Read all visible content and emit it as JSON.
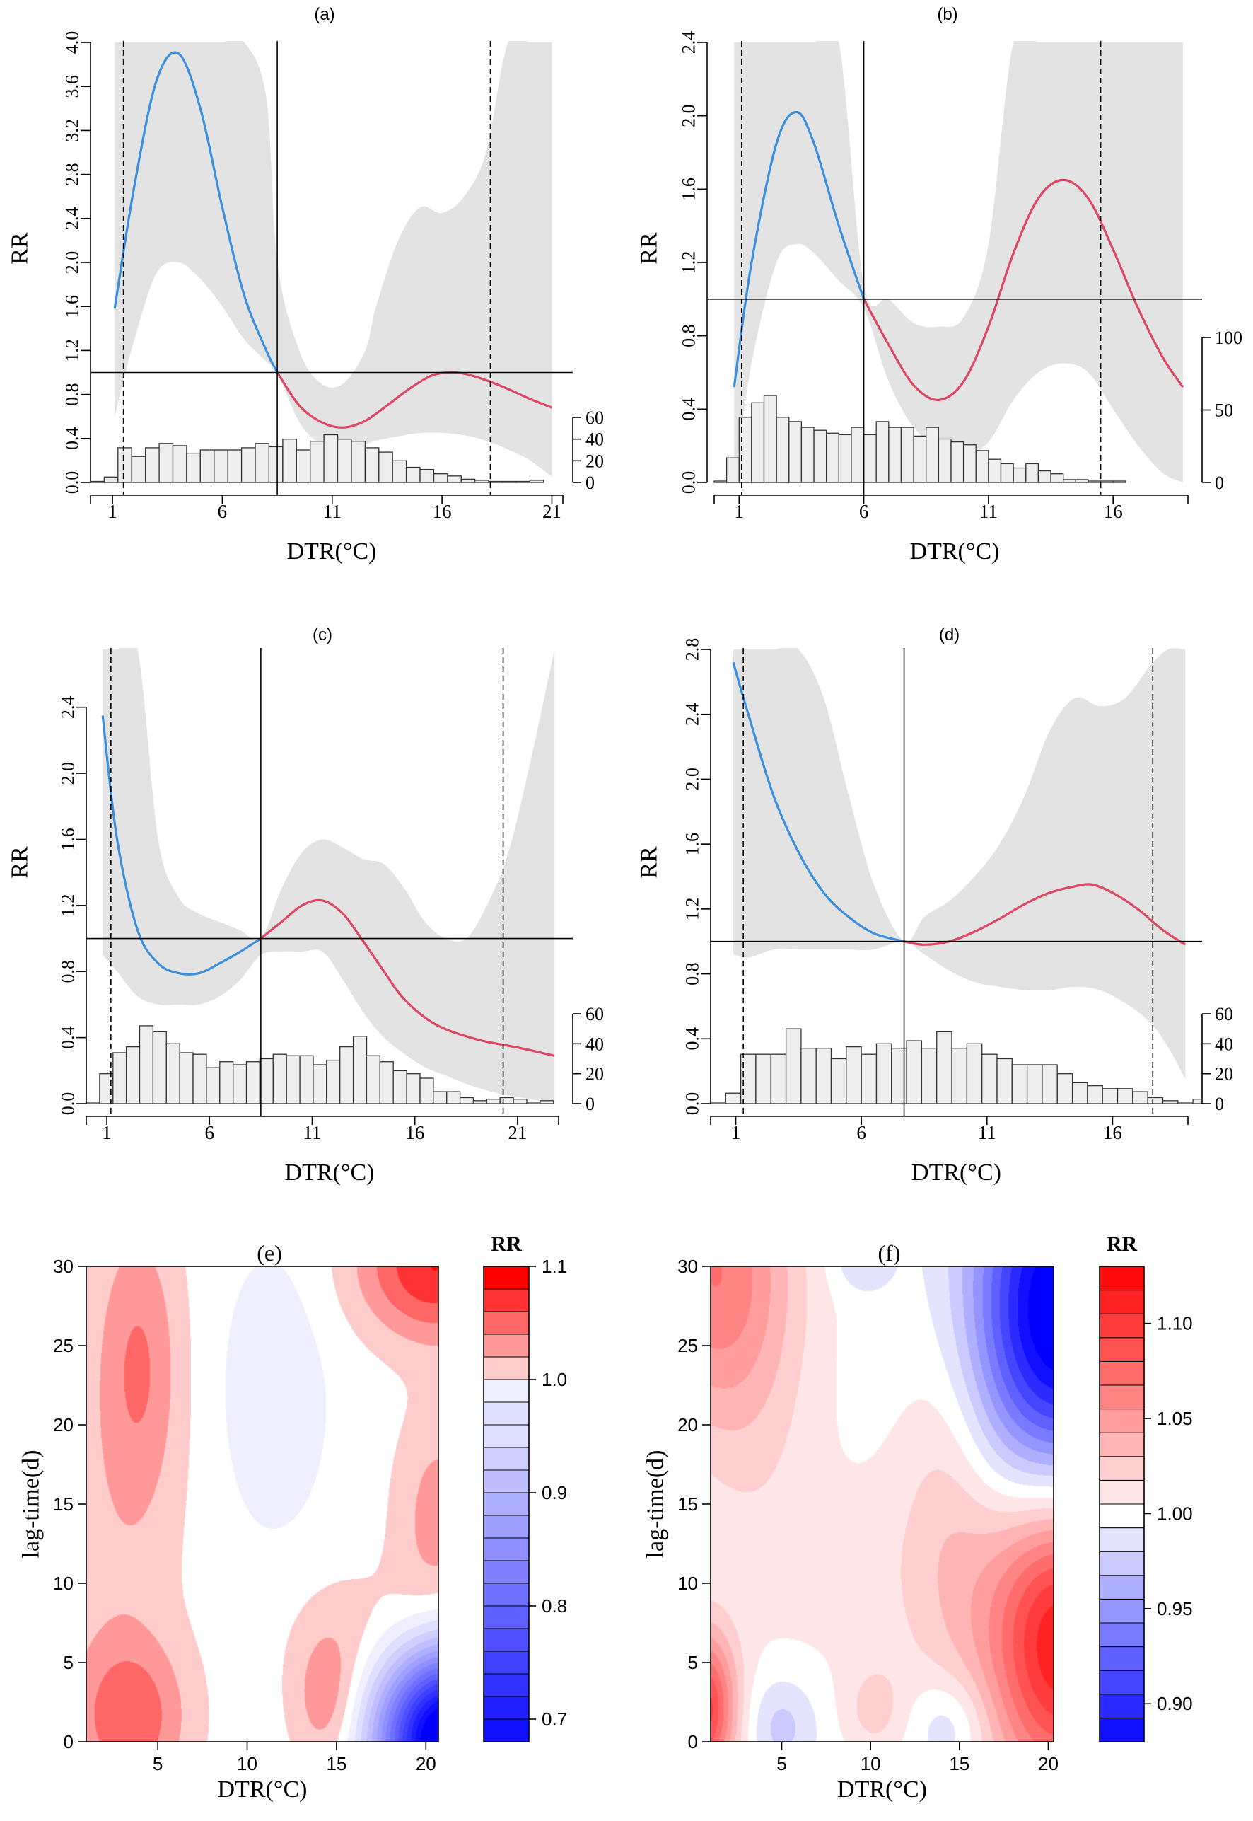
{
  "colors": {
    "cold": "#3a8fde",
    "hot": "#df4664",
    "ci_band": "#e3e3e3",
    "hist_fill": "#eeeeee",
    "pos": "#ff0000",
    "neg": "#0000ff"
  },
  "chart_data": [
    {
      "type": "line",
      "panel": "(a)",
      "title": "(a)",
      "xlabel": "DTR(°C)",
      "ylabel": "RR",
      "xlim": [
        0,
        21.5
      ],
      "ylim": [
        0,
        4.0
      ],
      "xticks": [
        1,
        6,
        11,
        16,
        21
      ],
      "yticks": [
        0.0,
        0.4,
        0.8,
        1.2,
        1.6,
        2.0,
        2.4,
        2.8,
        3.2,
        3.6,
        4.0
      ],
      "ytick_labels": [
        "0.0",
        "0.4",
        "0.8",
        "1.2",
        "1.6",
        "2.0",
        "2.4",
        "2.8",
        "3.2",
        "3.6",
        "4.0"
      ],
      "reference_rr": 1.0,
      "mmt": 8.5,
      "p_low": 1.5,
      "p_high": 18.2,
      "series": [
        {
          "name": "cold",
          "x": [
            1.1,
            2,
            3,
            4,
            5,
            6,
            7,
            8,
            8.5
          ],
          "y": [
            1.58,
            2.7,
            3.65,
            3.9,
            3.4,
            2.5,
            1.7,
            1.2,
            1.0
          ]
        },
        {
          "name": "heat",
          "x": [
            8.5,
            9.5,
            10.5,
            11.5,
            12.5,
            13.5,
            14.5,
            15.5,
            16.3,
            17,
            18,
            19,
            20,
            21
          ],
          "y": [
            1.0,
            0.7,
            0.55,
            0.5,
            0.56,
            0.7,
            0.85,
            0.97,
            1.0,
            0.99,
            0.93,
            0.85,
            0.76,
            0.68
          ]
        }
      ],
      "ci_upper": {
        "x": [
          1.1,
          2,
          3,
          4,
          5,
          6,
          7,
          8,
          8.5,
          9.5,
          10.5,
          11.5,
          12.5,
          13,
          14,
          15,
          16,
          17,
          18,
          19,
          20,
          21
        ],
        "y": [
          4.0,
          4.0,
          4.0,
          4.0,
          4.0,
          4.0,
          4.0,
          3.5,
          2.0,
          1.2,
          0.9,
          0.9,
          1.2,
          1.6,
          2.2,
          2.5,
          2.45,
          2.6,
          3.0,
          4.0,
          4.0,
          4.0
        ]
      },
      "ci_lower": {
        "x": [
          1.1,
          2,
          3,
          4,
          5,
          6,
          7,
          8,
          8.5,
          9.5,
          10.5,
          11.5,
          12.5,
          13,
          14,
          15,
          16,
          17,
          18,
          19,
          20,
          21
        ],
        "y": [
          0.6,
          1.3,
          1.9,
          2.0,
          1.85,
          1.6,
          1.3,
          1.1,
          1.0,
          0.55,
          0.35,
          0.33,
          0.35,
          0.38,
          0.42,
          0.45,
          0.45,
          0.43,
          0.38,
          0.3,
          0.2,
          0.05
        ]
      },
      "hist": {
        "bin_start": 0,
        "bin_width": 0.625,
        "counts": [
          1,
          5,
          32,
          24,
          32,
          36,
          34,
          27,
          30,
          30,
          30,
          32,
          36,
          33,
          40,
          30,
          38,
          44,
          40,
          38,
          32,
          28,
          20,
          14,
          12,
          8,
          6,
          3,
          2,
          1,
          1,
          1,
          2
        ],
        "axis_max": 60,
        "axis_ticks": [
          0,
          20,
          40,
          60
        ]
      }
    },
    {
      "type": "line",
      "panel": "(b)",
      "title": "(b)",
      "xlabel": "DTR(°C)",
      "ylabel": "RR",
      "xlim": [
        0,
        19
      ],
      "ylim": [
        0,
        2.4
      ],
      "xticks": [
        1,
        6,
        11,
        16
      ],
      "yticks": [
        0.0,
        0.4,
        0.8,
        1.2,
        1.6,
        2.0,
        2.4
      ],
      "ytick_labels": [
        "0.0",
        "0.4",
        "0.8",
        "1.2",
        "1.6",
        "2.0",
        "2.4"
      ],
      "reference_rr": 1.0,
      "mmt": 6,
      "p_low": 1.1,
      "p_high": 15.5,
      "series": [
        {
          "name": "cold",
          "x": [
            0.8,
            1.5,
            2.5,
            3.3,
            4,
            5,
            6
          ],
          "y": [
            0.52,
            1.2,
            1.85,
            2.02,
            1.85,
            1.4,
            1.0
          ]
        },
        {
          "name": "heat",
          "x": [
            6,
            7,
            8,
            9,
            10,
            11,
            12,
            13,
            14,
            15,
            16,
            17,
            18,
            18.8
          ],
          "y": [
            1.0,
            0.75,
            0.53,
            0.45,
            0.55,
            0.85,
            1.25,
            1.55,
            1.65,
            1.55,
            1.27,
            0.95,
            0.68,
            0.52
          ]
        }
      ],
      "ci_upper": {
        "x": [
          0.8,
          1.5,
          2.5,
          3.3,
          4,
          5,
          6,
          7,
          8,
          9,
          10,
          11,
          12,
          13,
          14,
          15,
          16,
          17,
          18,
          18.8
        ],
        "y": [
          2.4,
          2.4,
          2.4,
          2.4,
          2.4,
          2.4,
          1.08,
          1.0,
          0.87,
          0.85,
          0.9,
          1.3,
          2.4,
          2.4,
          2.4,
          2.4,
          2.4,
          2.4,
          2.4,
          2.4
        ]
      },
      "ci_lower": {
        "x": [
          0.8,
          1.5,
          2.5,
          3.3,
          4,
          5,
          6,
          7,
          8,
          9,
          10,
          11,
          12,
          13,
          14,
          15,
          16,
          17,
          18,
          18.8
        ],
        "y": [
          0.0,
          0.65,
          1.2,
          1.3,
          1.25,
          1.1,
          0.95,
          0.55,
          0.3,
          0.2,
          0.15,
          0.22,
          0.45,
          0.6,
          0.65,
          0.6,
          0.4,
          0.2,
          0.05,
          0.0
        ]
      },
      "hist": {
        "bin_start": 0,
        "bin_width": 0.5,
        "counts": [
          1,
          17,
          45,
          55,
          60,
          45,
          42,
          38,
          36,
          34,
          33,
          38,
          33,
          42,
          38,
          38,
          32,
          38,
          30,
          28,
          26,
          22,
          16,
          13,
          10,
          13,
          8,
          6,
          2,
          2,
          1,
          1,
          1
        ],
        "axis_max": 100,
        "axis_ticks": [
          0,
          50,
          100
        ]
      }
    },
    {
      "type": "line",
      "panel": "(c)",
      "title": "(c)",
      "xlabel": "DTR(°C)",
      "ylabel": "RR",
      "xlim": [
        0,
        23
      ],
      "ylim": [
        0,
        2.75
      ],
      "xticks": [
        1,
        6,
        11,
        16,
        21
      ],
      "yticks": [
        0.0,
        0.4,
        0.8,
        1.2,
        1.6,
        2.0,
        2.4
      ],
      "ytick_labels": [
        "0.0",
        "0.4",
        "0.8",
        "1.2",
        "1.6",
        "2.0",
        "2.4"
      ],
      "reference_rr": 1.0,
      "mmt": 8.5,
      "p_low": 1.2,
      "p_high": 20.3,
      "series": [
        {
          "name": "cold",
          "x": [
            0.8,
            1.5,
            2.5,
            3.5,
            4.5,
            5.5,
            6.5,
            7.5,
            8.5
          ],
          "y": [
            2.35,
            1.6,
            1.05,
            0.85,
            0.79,
            0.79,
            0.85,
            0.92,
            1.0
          ]
        },
        {
          "name": "heat",
          "x": [
            8.5,
            9.5,
            10.5,
            11.5,
            12.5,
            13.5,
            14.5,
            15.5,
            17,
            19,
            21,
            22.8
          ],
          "y": [
            1.0,
            1.1,
            1.2,
            1.23,
            1.15,
            0.98,
            0.8,
            0.63,
            0.48,
            0.39,
            0.34,
            0.29
          ]
        }
      ],
      "ci_upper": {
        "x": [
          0.8,
          1.5,
          2.5,
          3.5,
          4.5,
          5.5,
          6.5,
          7.5,
          8.5,
          9.5,
          10.5,
          11.5,
          12.5,
          13.5,
          14.5,
          15.5,
          16.5,
          17.5,
          18.5,
          19.5,
          20.5,
          21.5,
          22.8
        ],
        "y": [
          2.75,
          2.75,
          2.75,
          1.6,
          1.25,
          1.15,
          1.1,
          1.05,
          1.0,
          1.3,
          1.52,
          1.6,
          1.55,
          1.48,
          1.45,
          1.3,
          1.1,
          1.0,
          1.0,
          1.2,
          1.5,
          2.0,
          2.75
        ]
      },
      "ci_lower": {
        "x": [
          0.8,
          1.5,
          2.5,
          3.5,
          4.5,
          5.5,
          6.5,
          7.5,
          8.5,
          9.5,
          10.5,
          11.5,
          12.5,
          13.5,
          14.5,
          15.5,
          16.5,
          17.5,
          18.5,
          19.5,
          20.5,
          21.5,
          22.8
        ],
        "y": [
          0.9,
          0.8,
          0.65,
          0.6,
          0.6,
          0.6,
          0.65,
          0.75,
          0.9,
          0.92,
          0.92,
          0.92,
          0.75,
          0.55,
          0.4,
          0.3,
          0.22,
          0.17,
          0.12,
          0.08,
          0.05,
          0.03,
          0.0
        ]
      },
      "hist": {
        "bin_start": 0,
        "bin_width": 0.65,
        "counts": [
          1,
          20,
          34,
          38,
          52,
          48,
          40,
          34,
          33,
          24,
          28,
          26,
          28,
          30,
          33,
          32,
          32,
          26,
          29,
          38,
          45,
          32,
          28,
          22,
          20,
          17,
          8,
          8,
          4,
          2,
          3,
          4,
          3,
          1,
          2
        ],
        "axis_max": 60,
        "axis_ticks": [
          0,
          20,
          40,
          60
        ]
      }
    },
    {
      "type": "line",
      "panel": "(d)",
      "title": "(d)",
      "xlabel": "DTR(°C)",
      "ylabel": "RR",
      "xlim": [
        0,
        19
      ],
      "ylim": [
        0,
        2.8
      ],
      "xticks": [
        1,
        6,
        11,
        16
      ],
      "yticks": [
        0.0,
        0.4,
        0.8,
        1.2,
        1.6,
        2.0,
        2.4,
        2.8
      ],
      "ytick_labels": [
        "0.0",
        "0.4",
        "0.8",
        "1.2",
        "1.6",
        "2.0",
        "2.4",
        "2.8"
      ],
      "reference_rr": 1.0,
      "mmt": 7.7,
      "p_low": 1.3,
      "p_high": 17.6,
      "series": [
        {
          "name": "cold",
          "x": [
            0.9,
            1.5,
            2.5,
            3.5,
            4.5,
            5.5,
            6.5,
            7.7
          ],
          "y": [
            2.72,
            2.4,
            1.9,
            1.55,
            1.3,
            1.15,
            1.05,
            1.0
          ]
        },
        {
          "name": "heat",
          "x": [
            7.7,
            8.5,
            9.5,
            10.5,
            11.5,
            12.5,
            13.5,
            14.5,
            15.2,
            16,
            17,
            18,
            18.9
          ],
          "y": [
            1.0,
            0.98,
            1.0,
            1.06,
            1.14,
            1.23,
            1.3,
            1.34,
            1.35,
            1.3,
            1.2,
            1.07,
            0.98
          ]
        }
      ],
      "ci_upper": {
        "x": [
          0.9,
          1.5,
          2.5,
          3.5,
          4.5,
          5.5,
          6.5,
          7.7,
          8.5,
          9.5,
          10.5,
          11.5,
          12.5,
          13.5,
          14.5,
          15.5,
          16.5,
          17.5,
          18.2,
          18.9
        ],
        "y": [
          2.8,
          2.8,
          2.8,
          2.8,
          2.5,
          1.9,
          1.35,
          1.0,
          1.15,
          1.25,
          1.4,
          1.6,
          1.9,
          2.3,
          2.5,
          2.45,
          2.5,
          2.7,
          2.8,
          2.8
        ]
      },
      "ci_lower": {
        "x": [
          0.9,
          1.5,
          2.5,
          3.5,
          4.5,
          5.5,
          6.5,
          7.7,
          8.5,
          9.5,
          10.5,
          11.5,
          12.5,
          13.5,
          14.5,
          15.5,
          16.5,
          17.5,
          18.2,
          18.9
        ],
        "y": [
          0.92,
          0.9,
          0.95,
          0.95,
          0.95,
          0.95,
          0.95,
          1.0,
          0.92,
          0.82,
          0.75,
          0.72,
          0.7,
          0.7,
          0.72,
          0.7,
          0.62,
          0.5,
          0.35,
          0.15
        ]
      },
      "hist": {
        "bin_start": 0,
        "bin_width": 0.6,
        "counts": [
          1,
          7,
          33,
          33,
          33,
          50,
          37,
          37,
          30,
          38,
          33,
          40,
          37,
          42,
          37,
          48,
          37,
          40,
          33,
          30,
          26,
          26,
          26,
          20,
          14,
          12,
          10,
          10,
          8,
          4,
          2,
          1,
          3
        ],
        "axis_max": 60,
        "axis_ticks": [
          0,
          20,
          40,
          60
        ]
      }
    },
    {
      "type": "heatmap",
      "panel": "(e)",
      "title": "(e)",
      "xlabel": "DTR(°C)",
      "ylabel": "lag-time(d)",
      "xlim": [
        1,
        20.7
      ],
      "ylim": [
        0,
        30
      ],
      "xticks": [
        5,
        10,
        15,
        20
      ],
      "yticks": [
        0,
        5,
        10,
        15,
        20,
        25,
        30
      ],
      "legend_title": "RR",
      "legend_range": [
        0.68,
        1.1
      ],
      "legend_ticks": [
        0.7,
        0.8,
        0.9,
        1.0,
        1.1
      ],
      "legend_tick_labels": [
        "0.7",
        "0.8",
        "0.9",
        "1.0",
        "1.1"
      ],
      "contour_step": 0.02,
      "blobs": [
        {
          "x": 3.5,
          "y": 1.5,
          "sx": 2.2,
          "sy": 3.5,
          "a": 0.055
        },
        {
          "x": 4.0,
          "y": 24,
          "sx": 1.6,
          "sy": 6.5,
          "a": 0.042
        },
        {
          "x": 2.5,
          "y": 12,
          "sx": 2.8,
          "sy": 14,
          "a": 0.02
        },
        {
          "x": 14.5,
          "y": 2.5,
          "sx": 1.4,
          "sy": 3.2,
          "a": 0.045
        },
        {
          "x": 17.0,
          "y": 7.0,
          "sx": 3.0,
          "sy": 3.0,
          "a": 0.02
        },
        {
          "x": 20.7,
          "y": 14,
          "sx": 1.7,
          "sy": 5.0,
          "a": 0.04
        },
        {
          "x": 20.5,
          "y": 30,
          "sx": 3.0,
          "sy": 3.2,
          "a": 0.09
        },
        {
          "x": 11.5,
          "y": 22,
          "sx": 2.2,
          "sy": 6.5,
          "a": -0.025
        },
        {
          "x": 21.2,
          "y": 0,
          "sx": 2.6,
          "sy": 4.0,
          "a": -0.37
        }
      ]
    },
    {
      "type": "heatmap",
      "panel": "(f)",
      "title": "(f)",
      "xlabel": "DTR(°C)",
      "ylabel": "lag-time(d)",
      "xlim": [
        1,
        20.3
      ],
      "ylim": [
        0,
        30
      ],
      "xticks": [
        5,
        10,
        15,
        20
      ],
      "yticks": [
        0,
        5,
        10,
        15,
        20,
        25,
        30
      ],
      "legend_title": "RR",
      "legend_range": [
        0.88,
        1.13
      ],
      "legend_ticks": [
        0.9,
        0.95,
        1.0,
        1.05,
        1.1
      ],
      "legend_tick_labels": [
        "0.90",
        "0.95",
        "1.00",
        "1.05",
        "1.10"
      ],
      "contour_step": 0.0125,
      "blobs": [
        {
          "x": 1.0,
          "y": 30,
          "sx": 3.2,
          "sy": 7.0,
          "a": 0.065
        },
        {
          "x": 3.5,
          "y": 20,
          "sx": 2.5,
          "sy": 9.0,
          "a": 0.012
        },
        {
          "x": 14.5,
          "y": 17,
          "sx": 2.0,
          "sy": 9.0,
          "a": 0.022
        },
        {
          "x": 12.0,
          "y": 10,
          "sx": 5.0,
          "sy": 6.0,
          "a": 0.012
        },
        {
          "x": 20.8,
          "y": 6.5,
          "sx": 3.0,
          "sy": 7.0,
          "a": 0.12
        },
        {
          "x": 0.6,
          "y": 2.0,
          "sx": 1.3,
          "sy": 3.5,
          "a": 0.1
        },
        {
          "x": 10.2,
          "y": 2.0,
          "sx": 1.2,
          "sy": 2.0,
          "a": 0.02
        },
        {
          "x": 20.8,
          "y": 27,
          "sx": 3.6,
          "sy": 8.0,
          "a": -0.14
        },
        {
          "x": 5.0,
          "y": 1.0,
          "sx": 1.4,
          "sy": 2.2,
          "a": -0.025
        },
        {
          "x": 14.5,
          "y": 1.0,
          "sx": 1.5,
          "sy": 2.2,
          "a": -0.025
        },
        {
          "x": 9.5,
          "y": 30.5,
          "sx": 1.2,
          "sy": 1.5,
          "a": -0.02
        }
      ]
    }
  ]
}
